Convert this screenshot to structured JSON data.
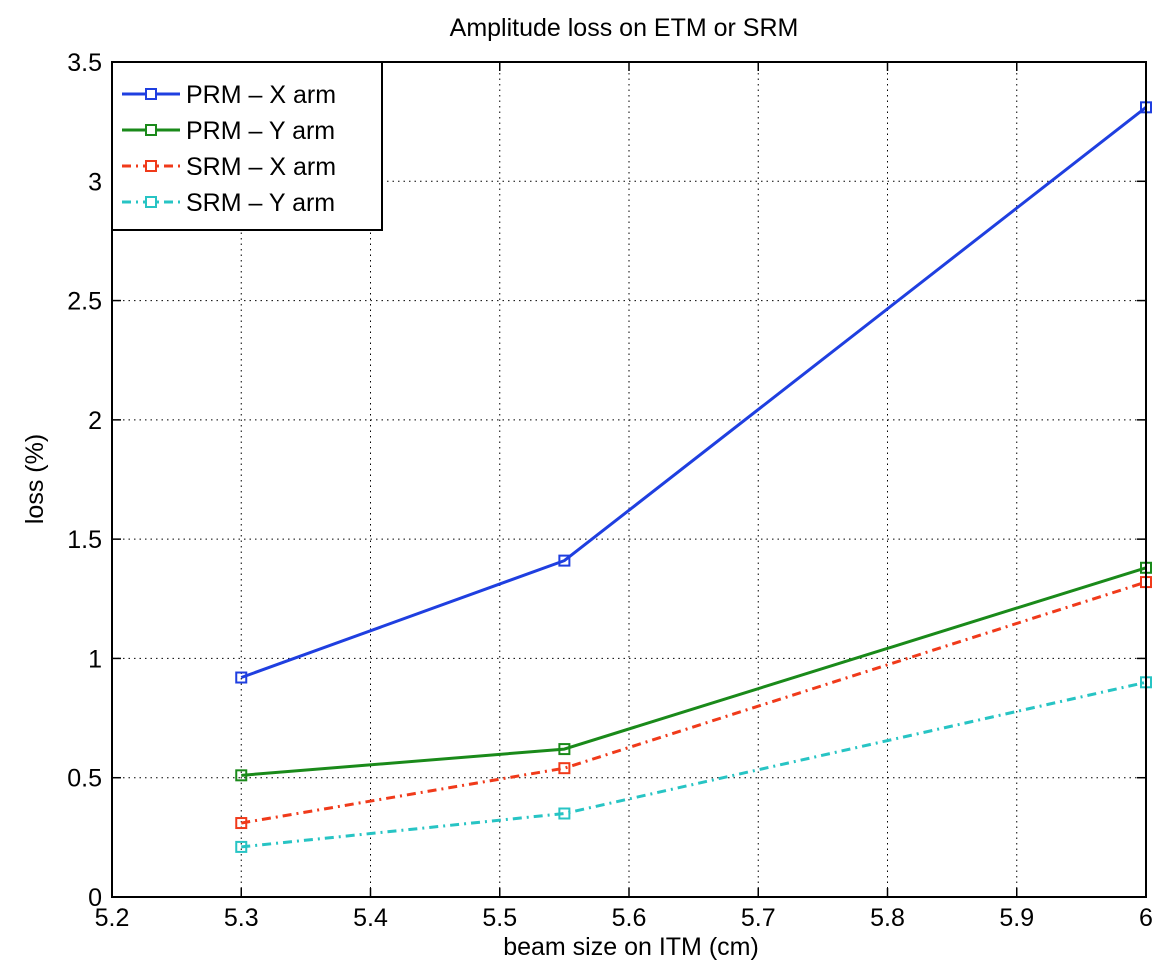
{
  "chart_data": {
    "type": "line",
    "title": "Amplitude loss on ETM or SRM",
    "xlabel": "beam size on ITM (cm)",
    "ylabel": "loss (%)",
    "xlim": [
      5.2,
      6.0
    ],
    "ylim": [
      0,
      3.5
    ],
    "xticks": [
      "5.2",
      "5.3",
      "5.4",
      "5.5",
      "5.6",
      "5.7",
      "5.8",
      "5.9",
      "6"
    ],
    "yticks": [
      "0",
      "0.5",
      "1",
      "1.5",
      "2",
      "2.5",
      "3",
      "3.5"
    ],
    "grid": true,
    "legend_position": "top-left",
    "x": [
      5.3,
      5.55,
      6.0
    ],
    "series": [
      {
        "name": "PRM – X arm",
        "values": [
          0.92,
          1.41,
          3.31
        ],
        "color": "#1f3fe0",
        "dash": "solid"
      },
      {
        "name": "PRM – Y arm",
        "values": [
          0.51,
          0.62,
          1.38
        ],
        "color": "#1a8a1a",
        "dash": "solid"
      },
      {
        "name": "SRM – X arm",
        "values": [
          0.31,
          0.54,
          1.32
        ],
        "color": "#f03a1a",
        "dash": "dashdot"
      },
      {
        "name": "SRM – Y arm",
        "values": [
          0.21,
          0.35,
          0.9
        ],
        "color": "#27c4c4",
        "dash": "dashdot"
      }
    ]
  }
}
